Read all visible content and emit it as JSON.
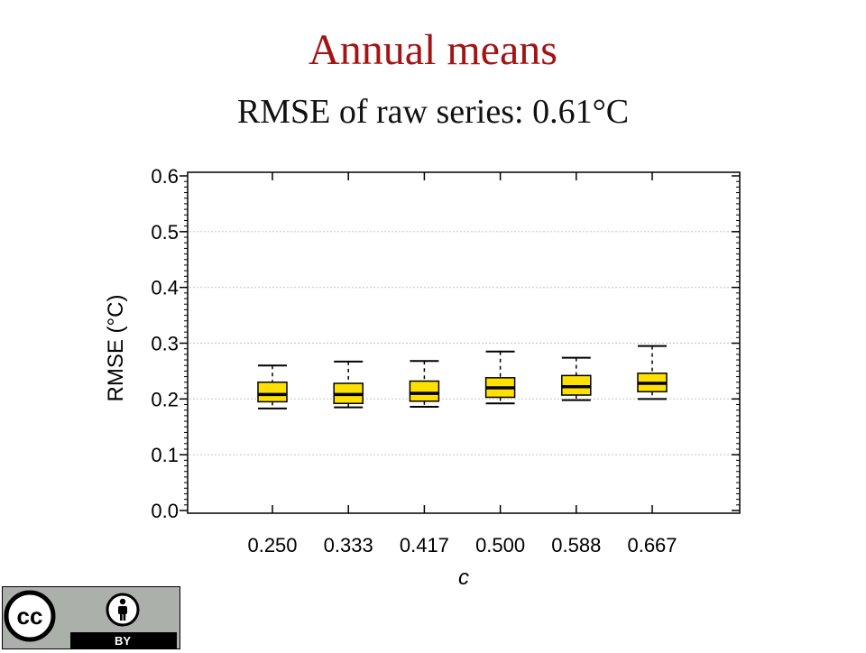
{
  "header": {
    "title": "Annual means",
    "subtitle": "RMSE of raw series: 0.61°C"
  },
  "colors": {
    "title": "#a31515",
    "box_fill": "#ffe000",
    "gridline": "#cccccc",
    "badge_bg": "#abb1aa"
  },
  "license": {
    "cc_label": "cc",
    "by_label": "BY"
  },
  "chart_data": {
    "type": "box",
    "title": "",
    "xlabel": "c",
    "ylabel": "RMSE (°C)",
    "ylim": [
      0.0,
      0.6
    ],
    "yticks": [
      "0.0",
      "0.1",
      "0.2",
      "0.3",
      "0.4",
      "0.5",
      "0.6"
    ],
    "grid": "horizontal dotted",
    "categories": [
      "0.250",
      "0.333",
      "0.417",
      "0.500",
      "0.588",
      "0.667"
    ],
    "boxes": [
      {
        "whisker_low": 0.183,
        "q1": 0.195,
        "median": 0.208,
        "q3": 0.23,
        "whisker_high": 0.26
      },
      {
        "whisker_low": 0.185,
        "q1": 0.192,
        "median": 0.208,
        "q3": 0.228,
        "whisker_high": 0.267
      },
      {
        "whisker_low": 0.186,
        "q1": 0.196,
        "median": 0.21,
        "q3": 0.232,
        "whisker_high": 0.268
      },
      {
        "whisker_low": 0.192,
        "q1": 0.203,
        "median": 0.22,
        "q3": 0.238,
        "whisker_high": 0.285
      },
      {
        "whisker_low": 0.198,
        "q1": 0.207,
        "median": 0.222,
        "q3": 0.242,
        "whisker_high": 0.274
      },
      {
        "whisker_low": 0.2,
        "q1": 0.213,
        "median": 0.228,
        "q3": 0.246,
        "whisker_high": 0.295
      }
    ]
  }
}
